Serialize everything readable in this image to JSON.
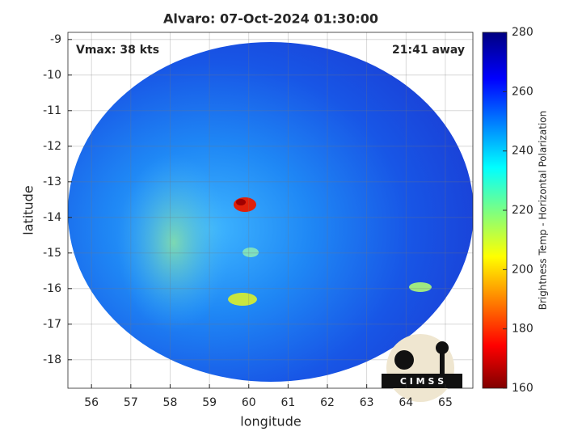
{
  "chart_data": {
    "type": "heatmap",
    "title": "Alvaro: 07-Oct-2024 01:30:00",
    "x_label": "longitude",
    "y_label": "latitude",
    "annotations": [
      "Vmax: 38 kts",
      "21:41 away"
    ],
    "logo_text": "C I M S S",
    "xlim": [
      55.4,
      65.7
    ],
    "xticks": [
      56,
      57,
      58,
      59,
      60,
      61,
      62,
      63,
      64,
      65
    ],
    "ylim": [
      -18.8,
      -8.8
    ],
    "yticks": [
      -18,
      -17,
      -16,
      -15,
      -14,
      -13,
      -12,
      -11,
      -10,
      -9
    ],
    "grid": true,
    "colorbar": {
      "label": "Brightness Temp - Horizontal Polarization",
      "lim": [
        160,
        280
      ],
      "ticks": [
        160,
        180,
        200,
        220,
        240,
        260,
        280
      ]
    }
  }
}
